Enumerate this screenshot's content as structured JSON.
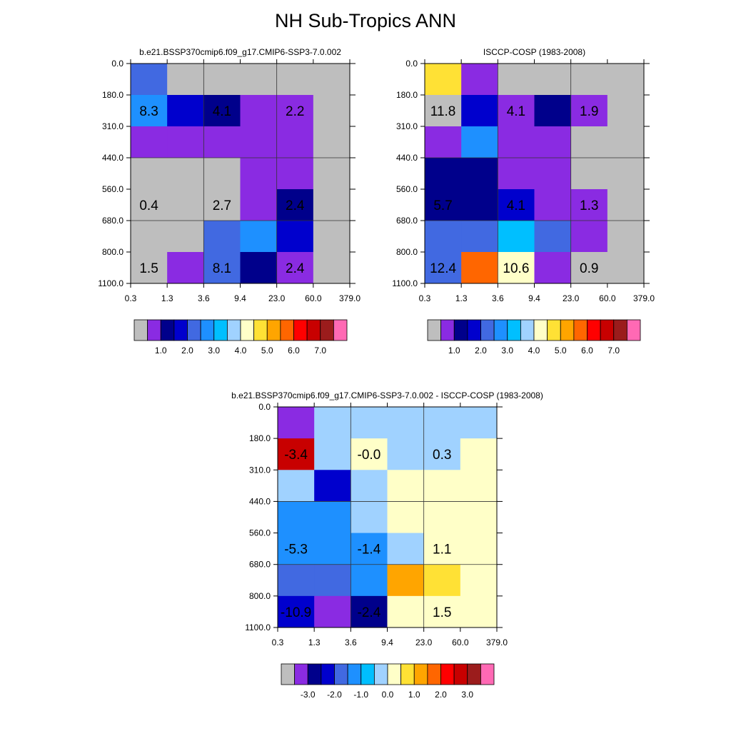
{
  "figure": {
    "title": "NH Sub-Tropics ANN"
  },
  "chart_data": [
    {
      "type": "heatmap",
      "title": "b.e21.BSSP370cmip6.f09_g17.CMIP6-SSP3-7.0.002",
      "x_ticks": [
        "0.3",
        "1.3",
        "3.6",
        "9.4",
        "23.0",
        "60.0",
        "379.0"
      ],
      "y_ticks": [
        "0.0",
        "180.0",
        "310.0",
        "440.0",
        "560.0",
        "680.0",
        "800.0",
        "1100.0"
      ],
      "cells": [
        [
          1.9,
          0.1,
          0.1,
          0.1,
          0.1,
          0.1
        ],
        [
          2.6,
          1.7,
          0.9,
          0.5,
          0.6,
          0.1
        ],
        [
          0.7,
          0.6,
          0.7,
          0.7,
          0.7,
          0.1
        ],
        [
          0.1,
          0.1,
          0.1,
          0.5,
          0.6,
          0.1
        ],
        [
          0.1,
          0.1,
          0.1,
          0.5,
          1.2,
          0.1
        ],
        [
          0.1,
          0.1,
          1.9,
          2.6,
          1.8,
          0.1
        ],
        [
          0.1,
          0.6,
          1.9,
          1.2,
          0.7,
          0.1
        ]
      ],
      "labels": [
        {
          "col": 0.5,
          "row": 1,
          "text": "8.3"
        },
        {
          "col": 2.5,
          "row": 1,
          "text": "4.1"
        },
        {
          "col": 4.5,
          "row": 1,
          "text": "2.2"
        },
        {
          "col": 0.5,
          "row": 4,
          "text": "0.4"
        },
        {
          "col": 2.5,
          "row": 4,
          "text": "2.7"
        },
        {
          "col": 4.5,
          "row": 4,
          "text": "2.4"
        },
        {
          "col": 0.5,
          "row": 6,
          "text": "1.5"
        },
        {
          "col": 2.5,
          "row": 6,
          "text": "8.1"
        },
        {
          "col": 4.5,
          "row": 6,
          "text": "2.4"
        }
      ],
      "colorbar": {
        "colors": [
          "#bebebe",
          "#8a2be2",
          "#00008b",
          "#0000cd",
          "#4169e1",
          "#1e90ff",
          "#00bfff",
          "#a0d2ff",
          "#ffffc8",
          "#ffe135",
          "#ffa500",
          "#ff6600",
          "#ff0000",
          "#c80000",
          "#9b1c1c",
          "#ff69b4"
        ],
        "tick_labels": [
          "1.0",
          "2.0",
          "3.0",
          "4.0",
          "5.0",
          "6.0",
          "7.0"
        ]
      }
    },
    {
      "type": "heatmap",
      "title": "ISCCP-COSP (1983-2008)",
      "x_ticks": [
        "0.3",
        "1.3",
        "3.6",
        "9.4",
        "23.0",
        "60.0",
        "379.0"
      ],
      "y_ticks": [
        "0.0",
        "180.0",
        "310.0",
        "440.0",
        "560.0",
        "680.0",
        "800.0",
        "1100.0"
      ],
      "cells": [
        [
          4.8,
          0.7,
          0.1,
          0.1,
          0.1,
          0.1
        ],
        [
          0.1,
          1.8,
          0.6,
          1.2,
          0.5,
          0.1
        ],
        [
          0.7,
          2.8,
          0.6,
          0.6,
          0.1,
          0.1
        ],
        [
          1.2,
          1.2,
          0.7,
          0.7,
          0.1,
          0.1
        ],
        [
          1.2,
          1.2,
          1.4,
          0.7,
          0.6,
          0.1
        ],
        [
          1.9,
          2.2,
          3.1,
          1.9,
          0.7,
          0.1
        ],
        [
          2.3,
          6.2,
          4.3,
          0.7,
          0.1,
          0.1
        ]
      ],
      "labels": [
        {
          "col": 0.5,
          "row": 1,
          "text": "11.8"
        },
        {
          "col": 2.5,
          "row": 1,
          "text": "4.1"
        },
        {
          "col": 4.5,
          "row": 1,
          "text": "1.9"
        },
        {
          "col": 0.5,
          "row": 4,
          "text": "5.7"
        },
        {
          "col": 2.5,
          "row": 4,
          "text": "4.1"
        },
        {
          "col": 4.5,
          "row": 4,
          "text": "1.3"
        },
        {
          "col": 0.5,
          "row": 6,
          "text": "12.4"
        },
        {
          "col": 2.5,
          "row": 6,
          "text": "10.6"
        },
        {
          "col": 4.5,
          "row": 6,
          "text": "0.9"
        }
      ],
      "colorbar": {
        "colors": [
          "#bebebe",
          "#8a2be2",
          "#00008b",
          "#0000cd",
          "#4169e1",
          "#1e90ff",
          "#00bfff",
          "#a0d2ff",
          "#ffffc8",
          "#ffe135",
          "#ffa500",
          "#ff6600",
          "#ff0000",
          "#c80000",
          "#9b1c1c",
          "#ff69b4"
        ],
        "tick_labels": [
          "1.0",
          "2.0",
          "3.0",
          "4.0",
          "5.0",
          "6.0",
          "7.0"
        ]
      }
    },
    {
      "type": "heatmap",
      "title": "b.e21.BSSP370cmip6.f09_g17.CMIP6-SSP3-7.0.002 - ISCCP-COSP (1983-2008)",
      "x_ticks": [
        "0.3",
        "1.3",
        "3.6",
        "9.4",
        "23.0",
        "60.0",
        "379.0"
      ],
      "y_ticks": [
        "0.0",
        "180.0",
        "310.0",
        "440.0",
        "560.0",
        "680.0",
        "800.0",
        "1100.0"
      ],
      "cells": [
        [
          -3.2,
          -0.2,
          -0.2,
          -0.2,
          -0.2,
          -0.2
        ],
        [
          2.8,
          -0.2,
          0.2,
          -0.2,
          -0.2,
          0.2
        ],
        [
          -0.2,
          -2.3,
          -0.2,
          0.2,
          0.2,
          0.2
        ],
        [
          -1.2,
          -1.2,
          -0.2,
          0.2,
          0.2,
          0.2
        ],
        [
          -1.2,
          -1.2,
          -1.2,
          -0.2,
          0.2,
          0.2
        ],
        [
          -1.7,
          -1.7,
          -1.2,
          1.2,
          0.8,
          0.2
        ],
        [
          -2.3,
          -3.6,
          -2.8,
          0.2,
          0.2,
          0.2
        ]
      ],
      "labels": [
        {
          "col": 0.5,
          "row": 1,
          "text": "-3.4"
        },
        {
          "col": 2.5,
          "row": 1,
          "text": "-0.0"
        },
        {
          "col": 4.5,
          "row": 1,
          "text": "0.3"
        },
        {
          "col": 0.5,
          "row": 4,
          "text": "-5.3"
        },
        {
          "col": 2.5,
          "row": 4,
          "text": "-1.4"
        },
        {
          "col": 4.5,
          "row": 4,
          "text": "1.1"
        },
        {
          "col": 0.5,
          "row": 6,
          "text": "-10.9"
        },
        {
          "col": 2.5,
          "row": 6,
          "text": "-2.4"
        },
        {
          "col": 4.5,
          "row": 6,
          "text": "1.5"
        }
      ],
      "colorbar": {
        "colors": [
          "#bebebe",
          "#8a2be2",
          "#00008b",
          "#0000cd",
          "#4169e1",
          "#1e90ff",
          "#00bfff",
          "#a0d2ff",
          "#ffffc8",
          "#ffe135",
          "#ffa500",
          "#ff6600",
          "#ff0000",
          "#c80000",
          "#9b1c1c",
          "#ff69b4"
        ],
        "tick_labels": [
          "-3.0",
          "-2.0",
          "-1.0",
          "0.0",
          "1.0",
          "2.0",
          "3.0"
        ]
      }
    }
  ]
}
